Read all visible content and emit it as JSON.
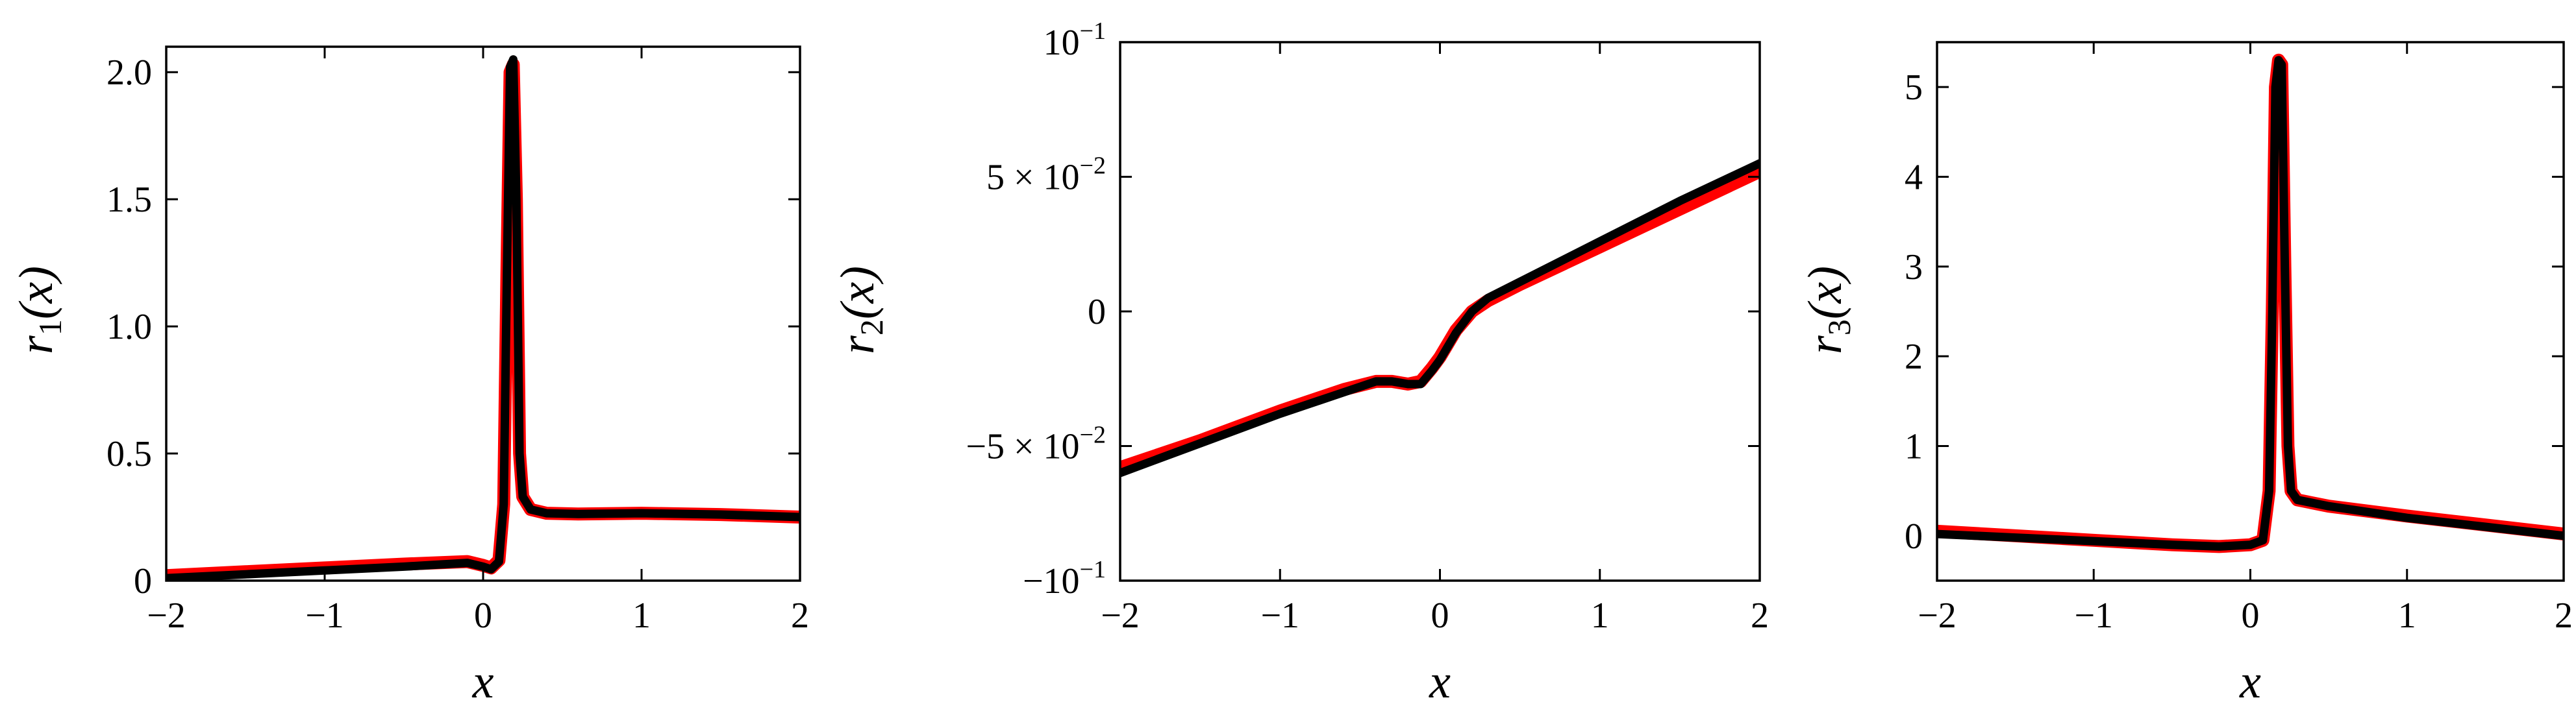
{
  "chart_data": [
    {
      "type": "line",
      "panel": "left",
      "xlabel": "x",
      "ylabel": "r1(x)",
      "ylabel_parts": {
        "base": "r",
        "sub": "1",
        "arg": "(x)"
      },
      "xlim": [
        -2,
        2
      ],
      "ylim": [
        0,
        2.1
      ],
      "xticks": [
        -2,
        -1,
        0,
        1,
        2
      ],
      "xtick_labels": [
        "−2",
        "−1",
        "0",
        "1",
        "2"
      ],
      "yticks": [
        0,
        0.5,
        1,
        1.5,
        2
      ],
      "ytick_labels": [
        "0",
        "0.5",
        "1.0",
        "1.5",
        "2.0"
      ],
      "grid": false,
      "series": [
        {
          "color": "#ff0000",
          "x": [
            -2,
            -1.5,
            -1,
            -0.5,
            -0.1,
            0.0,
            0.05,
            0.1,
            0.13,
            0.15,
            0.17,
            0.19,
            0.21,
            0.23,
            0.25,
            0.3,
            0.4,
            0.6,
            1,
            1.5,
            2
          ],
          "y": [
            0.02,
            0.035,
            0.05,
            0.065,
            0.075,
            0.06,
            0.05,
            0.08,
            0.3,
            1.2,
            2.0,
            2.03,
            1.5,
            0.5,
            0.33,
            0.28,
            0.265,
            0.262,
            0.265,
            0.26,
            0.25
          ]
        },
        {
          "color": "#000000",
          "x": [
            -2,
            -1.5,
            -1,
            -0.5,
            -0.1,
            0.0,
            0.05,
            0.1,
            0.13,
            0.15,
            0.17,
            0.19,
            0.21,
            0.23,
            0.25,
            0.3,
            0.4,
            0.6,
            1,
            1.5,
            2
          ],
          "y": [
            0.01,
            0.025,
            0.04,
            0.055,
            0.07,
            0.055,
            0.045,
            0.075,
            0.3,
            1.2,
            2.02,
            2.05,
            1.5,
            0.5,
            0.33,
            0.28,
            0.265,
            0.262,
            0.265,
            0.26,
            0.25
          ]
        }
      ]
    },
    {
      "type": "line",
      "panel": "middle",
      "xlabel": "x",
      "ylabel": "r2(x)",
      "ylabel_parts": {
        "base": "r",
        "sub": "2",
        "arg": "(x)"
      },
      "xlim": [
        -2,
        2
      ],
      "ylim": [
        -0.1,
        0.1
      ],
      "xticks": [
        -2,
        -1,
        0,
        1,
        2
      ],
      "xtick_labels": [
        "−2",
        "−1",
        "0",
        "1",
        "2"
      ],
      "yticks": [
        -0.1,
        -0.05,
        0,
        0.05,
        0.1
      ],
      "ytick_labels": [
        {
          "mant": "−10",
          "exp": "−1"
        },
        {
          "mant": "−5 × 10",
          "exp": "−2"
        },
        {
          "mant": "0",
          "exp": ""
        },
        {
          "mant": "5 × 10",
          "exp": "−2"
        },
        {
          "mant": "10",
          "exp": "−1"
        }
      ],
      "grid": false,
      "series": [
        {
          "color": "#ff0000",
          "x": [
            -2,
            -1.5,
            -1,
            -0.6,
            -0.4,
            -0.3,
            -0.2,
            -0.12,
            -0.05,
            0.0,
            0.1,
            0.2,
            0.3,
            0.5,
            1,
            1.5,
            2
          ],
          "y": [
            -0.058,
            -0.048,
            -0.037,
            -0.029,
            -0.026,
            -0.026,
            -0.027,
            -0.026,
            -0.021,
            -0.017,
            -0.007,
            0.0,
            0.004,
            0.01,
            0.024,
            0.038,
            0.052
          ],
          "width": 20
        },
        {
          "color": "#000000",
          "x": [
            -2,
            -1.5,
            -1,
            -0.6,
            -0.4,
            -0.3,
            -0.2,
            -0.12,
            -0.05,
            0.0,
            0.1,
            0.2,
            0.3,
            0.5,
            1,
            1.5,
            2
          ],
          "y": [
            -0.06,
            -0.049,
            -0.038,
            -0.03,
            -0.026,
            -0.026,
            -0.027,
            -0.027,
            -0.022,
            -0.018,
            -0.008,
            0.0,
            0.005,
            0.011,
            0.026,
            0.041,
            0.055
          ],
          "width": 13
        }
      ]
    },
    {
      "type": "line",
      "panel": "right",
      "xlabel": "x",
      "ylabel": "r3(x)",
      "ylabel_parts": {
        "base": "r",
        "sub": "3",
        "arg": "(x)"
      },
      "xlim": [
        -2,
        2
      ],
      "ylim": [
        -0.5,
        5.5
      ],
      "xticks": [
        -2,
        -1,
        0,
        1,
        2
      ],
      "xtick_labels": [
        "−2",
        "−1",
        "0",
        "1",
        "2"
      ],
      "yticks": [
        0,
        1,
        2,
        3,
        4,
        5
      ],
      "ytick_labels": [
        "0",
        "1",
        "2",
        "3",
        "4",
        "5"
      ],
      "grid": false,
      "series": [
        {
          "color": "#ff0000",
          "x": [
            -2,
            -1.5,
            -1,
            -0.5,
            -0.2,
            0.0,
            0.08,
            0.12,
            0.14,
            0.16,
            0.18,
            0.2,
            0.22,
            0.24,
            0.26,
            0.3,
            0.5,
            1,
            1.5,
            2
          ],
          "y": [
            0.05,
            0.0,
            -0.05,
            -0.1,
            -0.12,
            -0.1,
            -0.05,
            0.5,
            2.5,
            5.0,
            5.3,
            5.25,
            3.0,
            1.0,
            0.5,
            0.4,
            0.33,
            0.22,
            0.12,
            0.02
          ],
          "width": 20
        },
        {
          "color": "#000000",
          "x": [
            -2,
            -1.5,
            -1,
            -0.5,
            -0.2,
            0.0,
            0.08,
            0.12,
            0.14,
            0.16,
            0.18,
            0.2,
            0.22,
            0.24,
            0.26,
            0.3,
            0.5,
            1,
            1.5,
            2
          ],
          "y": [
            0.02,
            -0.02,
            -0.06,
            -0.1,
            -0.12,
            -0.1,
            -0.05,
            0.5,
            2.5,
            5.0,
            5.3,
            5.25,
            3.0,
            1.0,
            0.5,
            0.4,
            0.33,
            0.2,
            0.1,
            0.0
          ],
          "width": 13
        }
      ]
    }
  ]
}
